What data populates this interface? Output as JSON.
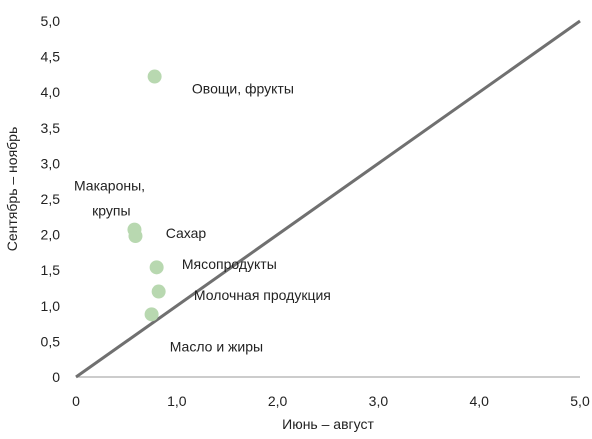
{
  "chart_data": {
    "type": "scatter",
    "xlabel": "Июнь – август",
    "ylabel": "Сентябрь – ноябрь",
    "xlim": [
      0,
      5
    ],
    "ylim": [
      0,
      5
    ],
    "x_ticks": [
      "0",
      "1,0",
      "2,0",
      "3,0",
      "4,0",
      "5,0"
    ],
    "y_ticks": [
      "0",
      "0,5",
      "1,0",
      "1,5",
      "2,0",
      "2,5",
      "3,0",
      "3,5",
      "4,0",
      "4,5",
      "5,0"
    ],
    "grid": false,
    "reference_line": {
      "from": [
        0,
        0
      ],
      "to": [
        5,
        5
      ]
    },
    "point_color": "#b8d8b0",
    "line_color": "#707070",
    "points": [
      {
        "x": 0.78,
        "y": 4.22
      },
      {
        "x": 0.58,
        "y": 2.07
      },
      {
        "x": 0.59,
        "y": 1.98
      },
      {
        "x": 0.8,
        "y": 1.54
      },
      {
        "x": 0.82,
        "y": 1.2
      },
      {
        "x": 0.75,
        "y": 0.88
      }
    ],
    "labels": [
      {
        "text": "Овощи, фрукты",
        "x": 1.15,
        "y": 3.98
      },
      {
        "text": "Макароны,",
        "x": -0.02,
        "y": 2.62
      },
      {
        "text": "крупы",
        "x": 0.16,
        "y": 2.27
      },
      {
        "text": "Сахар",
        "x": 0.89,
        "y": 1.95
      },
      {
        "text": "Мясопродукты",
        "x": 1.05,
        "y": 1.52
      },
      {
        "text": "Молочная продукция",
        "x": 1.17,
        "y": 1.08
      },
      {
        "text": "Масло и жиры",
        "x": 0.93,
        "y": 0.36
      }
    ]
  }
}
